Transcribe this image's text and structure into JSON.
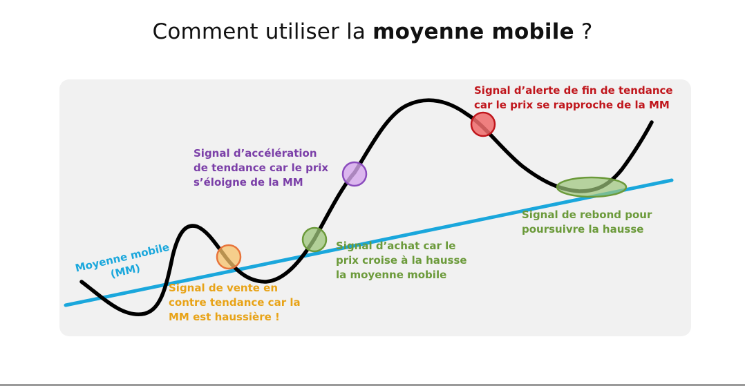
{
  "title": {
    "prefix": "Comment utiliser la ",
    "emphasis": "moyenne mobile",
    "suffix": " ?"
  },
  "ma_label": {
    "line1": "Moyenne mobile",
    "line2": "(MM)",
    "color": "#1aa7dc"
  },
  "price_curve_color": "#000000",
  "panel_color": "#f1f1f1",
  "signals": {
    "sell": {
      "text": "Signal de vente en\ncontre tendance car la\nMM est haussière !",
      "color": "#e8a317",
      "fill": "#f5c26a",
      "stroke": "#e8743b"
    },
    "buy": {
      "text": "Signal d’achat car le\nprix croise à la hausse\nla moyenne mobile",
      "color": "#6b9a3a",
      "fill": "#9cc47a",
      "stroke": "#6b9a3a"
    },
    "acceleration": {
      "text": "Signal d’accélération\nde tendance car le prix\ns’éloigne de la MM",
      "color": "#7b3fa8",
      "fill": "#d6a8ee",
      "stroke": "#8a4bbd"
    },
    "alert": {
      "text": "Signal d’alerte de fin de tendance\ncar le prix se rapproche de la MM",
      "color": "#c0161c",
      "fill": "#ef6b6b",
      "stroke": "#c0161c"
    },
    "rebound": {
      "text": "Signal de rebond pour\npoursuivre la hausse",
      "color": "#6b9a3a",
      "fill": "#9cc47a",
      "stroke": "#6b9a3a"
    }
  }
}
